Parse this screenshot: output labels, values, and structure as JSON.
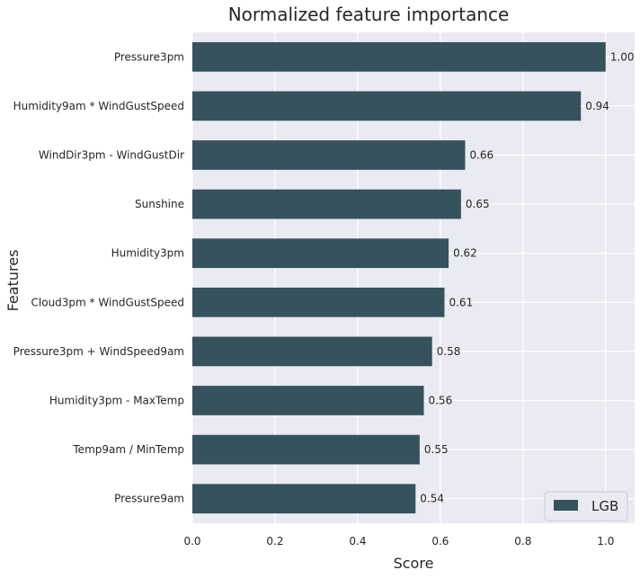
{
  "chart_data": {
    "type": "bar",
    "orientation": "horizontal",
    "title": "Normalized feature importance",
    "xlabel": "Score",
    "ylabel": "Features",
    "categories": [
      "Pressure3pm",
      "Humidity9am * WindGustSpeed",
      "WindDir3pm - WindGustDir",
      "Sunshine",
      "Humidity3pm",
      "Cloud3pm * WindGustSpeed",
      "Pressure3pm + WindSpeed9am",
      "Humidity3pm - MaxTemp",
      "Temp9am / MinTemp",
      "Pressure9am"
    ],
    "series": [
      {
        "name": "LGB",
        "values": [
          1.0,
          0.94,
          0.66,
          0.65,
          0.62,
          0.61,
          0.58,
          0.56,
          0.55,
          0.54
        ],
        "labels": [
          "1.00",
          "0.94",
          "0.66",
          "0.65",
          "0.62",
          "0.61",
          "0.58",
          "0.56",
          "0.55",
          "0.54"
        ],
        "color": "#36525c"
      }
    ],
    "xlim": [
      0,
      1.07
    ],
    "xticks": [
      0.0,
      0.2,
      0.4,
      0.6,
      0.8,
      1.0
    ],
    "xtick_labels": [
      "0.0",
      "0.2",
      "0.4",
      "0.6",
      "0.8",
      "1.0"
    ],
    "grid": true,
    "legend_position": "bottom-right",
    "background_color": "#eaeaf2"
  }
}
